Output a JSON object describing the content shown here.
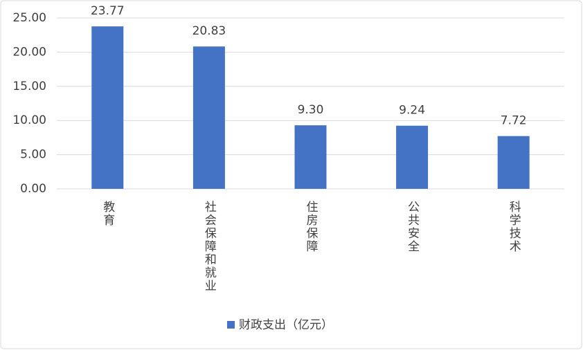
{
  "chart_data": {
    "type": "bar",
    "categories": [
      "教育",
      "社会保障和就业",
      "住房保障",
      "公共安全",
      "科学技术"
    ],
    "series": [
      {
        "name": "财政支出（亿元）",
        "color": "#4472c4",
        "values": [
          23.77,
          20.83,
          9.3,
          9.24,
          7.72
        ],
        "value_labels": [
          "23.77",
          "20.83",
          "9.30",
          "9.24",
          "7.72"
        ]
      }
    ],
    "ylim": [
      0,
      25
    ],
    "yticks": [
      {
        "value": 0,
        "label": "0.00"
      },
      {
        "value": 5,
        "label": "5.00"
      },
      {
        "value": 10,
        "label": "10.00"
      },
      {
        "value": 15,
        "label": "15.00"
      },
      {
        "value": 20,
        "label": "20.00"
      },
      {
        "value": 25,
        "label": "25.00"
      }
    ],
    "grid": true,
    "legend": "bottom"
  }
}
